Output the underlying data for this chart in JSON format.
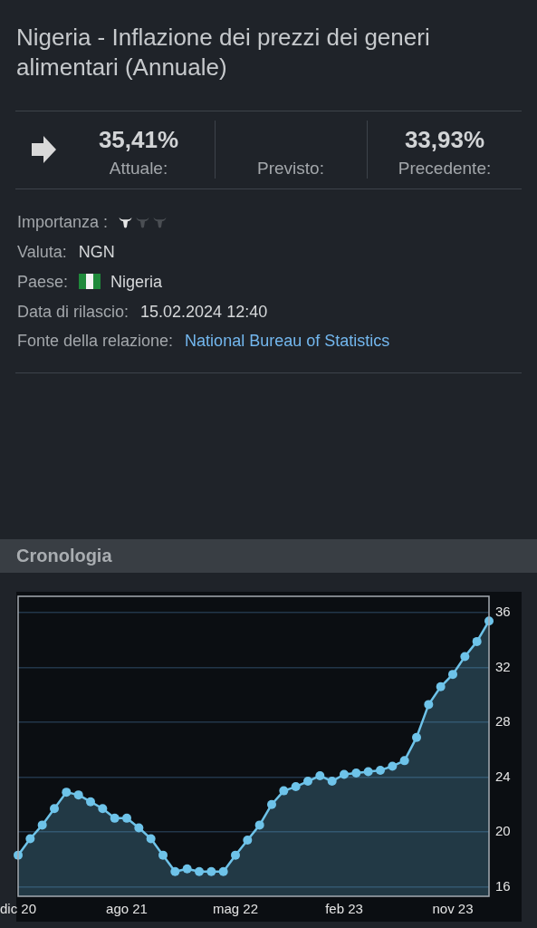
{
  "chart_data": {
    "type": "area",
    "title": "Nigeria - Inflazione dei prezzi dei generi alimentari (Annuale)",
    "subtitle": "Cronologia",
    "annotations": [
      "35,41%",
      "Attuale:",
      "Previsto:",
      "33,93%",
      "Precedente:",
      "Importanza :",
      "Valuta:",
      "NGN",
      "Paese:",
      "Nigeria",
      "Data di rilascio:",
      "15.02.2024 12:40",
      "Fonte della relazione:",
      "National Bureau of Statistics"
    ],
    "categories": [
      "dic 20",
      null,
      null,
      null,
      null,
      null,
      null,
      null,
      null,
      "ago 21",
      null,
      null,
      null,
      null,
      null,
      null,
      null,
      null,
      "mag 22",
      null,
      null,
      null,
      null,
      null,
      null,
      null,
      null,
      "feb 23",
      null,
      null,
      null,
      null,
      null,
      null,
      null,
      null,
      "nov 23",
      null,
      null,
      null
    ],
    "series": [
      {
        "color": "#6ec3e9",
        "values": [
          18.3,
          19.5,
          20.5,
          21.7,
          22.9,
          22.7,
          22.2,
          21.7,
          21.0,
          21.0,
          20.3,
          19.5,
          18.3,
          17.1,
          17.3,
          17.1,
          17.1,
          17.1,
          18.3,
          19.4,
          20.5,
          22.0,
          23.0,
          23.3,
          23.7,
          24.1,
          23.7,
          24.2,
          24.3,
          24.4,
          24.5,
          24.8,
          25.2,
          26.9,
          29.3,
          30.6,
          31.5,
          32.8,
          33.9,
          35.4
        ]
      }
    ],
    "ylim": [
      15.3,
      37.2
    ],
    "yticks": [
      16,
      20,
      24,
      28,
      32,
      36
    ],
    "grid": "y",
    "marker": "circle"
  }
}
